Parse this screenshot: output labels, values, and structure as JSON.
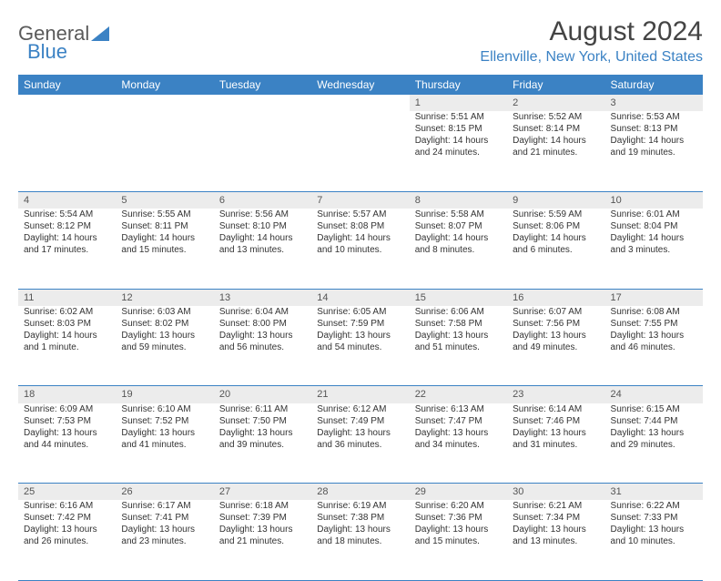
{
  "logo": {
    "text1": "General",
    "text2": "Blue"
  },
  "title": "August 2024",
  "location": "Ellenville, New York, United States",
  "colors": {
    "brand_blue": "#3b82c4",
    "header_bg": "#3b82c4",
    "header_text": "#ffffff",
    "daynum_bg": "#ececec",
    "text": "#333333",
    "muted": "#555555"
  },
  "dayHeaders": [
    "Sunday",
    "Monday",
    "Tuesday",
    "Wednesday",
    "Thursday",
    "Friday",
    "Saturday"
  ],
  "weeks": [
    [
      null,
      null,
      null,
      null,
      {
        "n": "1",
        "sr": "Sunrise: 5:51 AM",
        "ss": "Sunset: 8:15 PM",
        "d1": "Daylight: 14 hours",
        "d2": "and 24 minutes."
      },
      {
        "n": "2",
        "sr": "Sunrise: 5:52 AM",
        "ss": "Sunset: 8:14 PM",
        "d1": "Daylight: 14 hours",
        "d2": "and 21 minutes."
      },
      {
        "n": "3",
        "sr": "Sunrise: 5:53 AM",
        "ss": "Sunset: 8:13 PM",
        "d1": "Daylight: 14 hours",
        "d2": "and 19 minutes."
      }
    ],
    [
      {
        "n": "4",
        "sr": "Sunrise: 5:54 AM",
        "ss": "Sunset: 8:12 PM",
        "d1": "Daylight: 14 hours",
        "d2": "and 17 minutes."
      },
      {
        "n": "5",
        "sr": "Sunrise: 5:55 AM",
        "ss": "Sunset: 8:11 PM",
        "d1": "Daylight: 14 hours",
        "d2": "and 15 minutes."
      },
      {
        "n": "6",
        "sr": "Sunrise: 5:56 AM",
        "ss": "Sunset: 8:10 PM",
        "d1": "Daylight: 14 hours",
        "d2": "and 13 minutes."
      },
      {
        "n": "7",
        "sr": "Sunrise: 5:57 AM",
        "ss": "Sunset: 8:08 PM",
        "d1": "Daylight: 14 hours",
        "d2": "and 10 minutes."
      },
      {
        "n": "8",
        "sr": "Sunrise: 5:58 AM",
        "ss": "Sunset: 8:07 PM",
        "d1": "Daylight: 14 hours",
        "d2": "and 8 minutes."
      },
      {
        "n": "9",
        "sr": "Sunrise: 5:59 AM",
        "ss": "Sunset: 8:06 PM",
        "d1": "Daylight: 14 hours",
        "d2": "and 6 minutes."
      },
      {
        "n": "10",
        "sr": "Sunrise: 6:01 AM",
        "ss": "Sunset: 8:04 PM",
        "d1": "Daylight: 14 hours",
        "d2": "and 3 minutes."
      }
    ],
    [
      {
        "n": "11",
        "sr": "Sunrise: 6:02 AM",
        "ss": "Sunset: 8:03 PM",
        "d1": "Daylight: 14 hours",
        "d2": "and 1 minute."
      },
      {
        "n": "12",
        "sr": "Sunrise: 6:03 AM",
        "ss": "Sunset: 8:02 PM",
        "d1": "Daylight: 13 hours",
        "d2": "and 59 minutes."
      },
      {
        "n": "13",
        "sr": "Sunrise: 6:04 AM",
        "ss": "Sunset: 8:00 PM",
        "d1": "Daylight: 13 hours",
        "d2": "and 56 minutes."
      },
      {
        "n": "14",
        "sr": "Sunrise: 6:05 AM",
        "ss": "Sunset: 7:59 PM",
        "d1": "Daylight: 13 hours",
        "d2": "and 54 minutes."
      },
      {
        "n": "15",
        "sr": "Sunrise: 6:06 AM",
        "ss": "Sunset: 7:58 PM",
        "d1": "Daylight: 13 hours",
        "d2": "and 51 minutes."
      },
      {
        "n": "16",
        "sr": "Sunrise: 6:07 AM",
        "ss": "Sunset: 7:56 PM",
        "d1": "Daylight: 13 hours",
        "d2": "and 49 minutes."
      },
      {
        "n": "17",
        "sr": "Sunrise: 6:08 AM",
        "ss": "Sunset: 7:55 PM",
        "d1": "Daylight: 13 hours",
        "d2": "and 46 minutes."
      }
    ],
    [
      {
        "n": "18",
        "sr": "Sunrise: 6:09 AM",
        "ss": "Sunset: 7:53 PM",
        "d1": "Daylight: 13 hours",
        "d2": "and 44 minutes."
      },
      {
        "n": "19",
        "sr": "Sunrise: 6:10 AM",
        "ss": "Sunset: 7:52 PM",
        "d1": "Daylight: 13 hours",
        "d2": "and 41 minutes."
      },
      {
        "n": "20",
        "sr": "Sunrise: 6:11 AM",
        "ss": "Sunset: 7:50 PM",
        "d1": "Daylight: 13 hours",
        "d2": "and 39 minutes."
      },
      {
        "n": "21",
        "sr": "Sunrise: 6:12 AM",
        "ss": "Sunset: 7:49 PM",
        "d1": "Daylight: 13 hours",
        "d2": "and 36 minutes."
      },
      {
        "n": "22",
        "sr": "Sunrise: 6:13 AM",
        "ss": "Sunset: 7:47 PM",
        "d1": "Daylight: 13 hours",
        "d2": "and 34 minutes."
      },
      {
        "n": "23",
        "sr": "Sunrise: 6:14 AM",
        "ss": "Sunset: 7:46 PM",
        "d1": "Daylight: 13 hours",
        "d2": "and 31 minutes."
      },
      {
        "n": "24",
        "sr": "Sunrise: 6:15 AM",
        "ss": "Sunset: 7:44 PM",
        "d1": "Daylight: 13 hours",
        "d2": "and 29 minutes."
      }
    ],
    [
      {
        "n": "25",
        "sr": "Sunrise: 6:16 AM",
        "ss": "Sunset: 7:42 PM",
        "d1": "Daylight: 13 hours",
        "d2": "and 26 minutes."
      },
      {
        "n": "26",
        "sr": "Sunrise: 6:17 AM",
        "ss": "Sunset: 7:41 PM",
        "d1": "Daylight: 13 hours",
        "d2": "and 23 minutes."
      },
      {
        "n": "27",
        "sr": "Sunrise: 6:18 AM",
        "ss": "Sunset: 7:39 PM",
        "d1": "Daylight: 13 hours",
        "d2": "and 21 minutes."
      },
      {
        "n": "28",
        "sr": "Sunrise: 6:19 AM",
        "ss": "Sunset: 7:38 PM",
        "d1": "Daylight: 13 hours",
        "d2": "and 18 minutes."
      },
      {
        "n": "29",
        "sr": "Sunrise: 6:20 AM",
        "ss": "Sunset: 7:36 PM",
        "d1": "Daylight: 13 hours",
        "d2": "and 15 minutes."
      },
      {
        "n": "30",
        "sr": "Sunrise: 6:21 AM",
        "ss": "Sunset: 7:34 PM",
        "d1": "Daylight: 13 hours",
        "d2": "and 13 minutes."
      },
      {
        "n": "31",
        "sr": "Sunrise: 6:22 AM",
        "ss": "Sunset: 7:33 PM",
        "d1": "Daylight: 13 hours",
        "d2": "and 10 minutes."
      }
    ]
  ]
}
